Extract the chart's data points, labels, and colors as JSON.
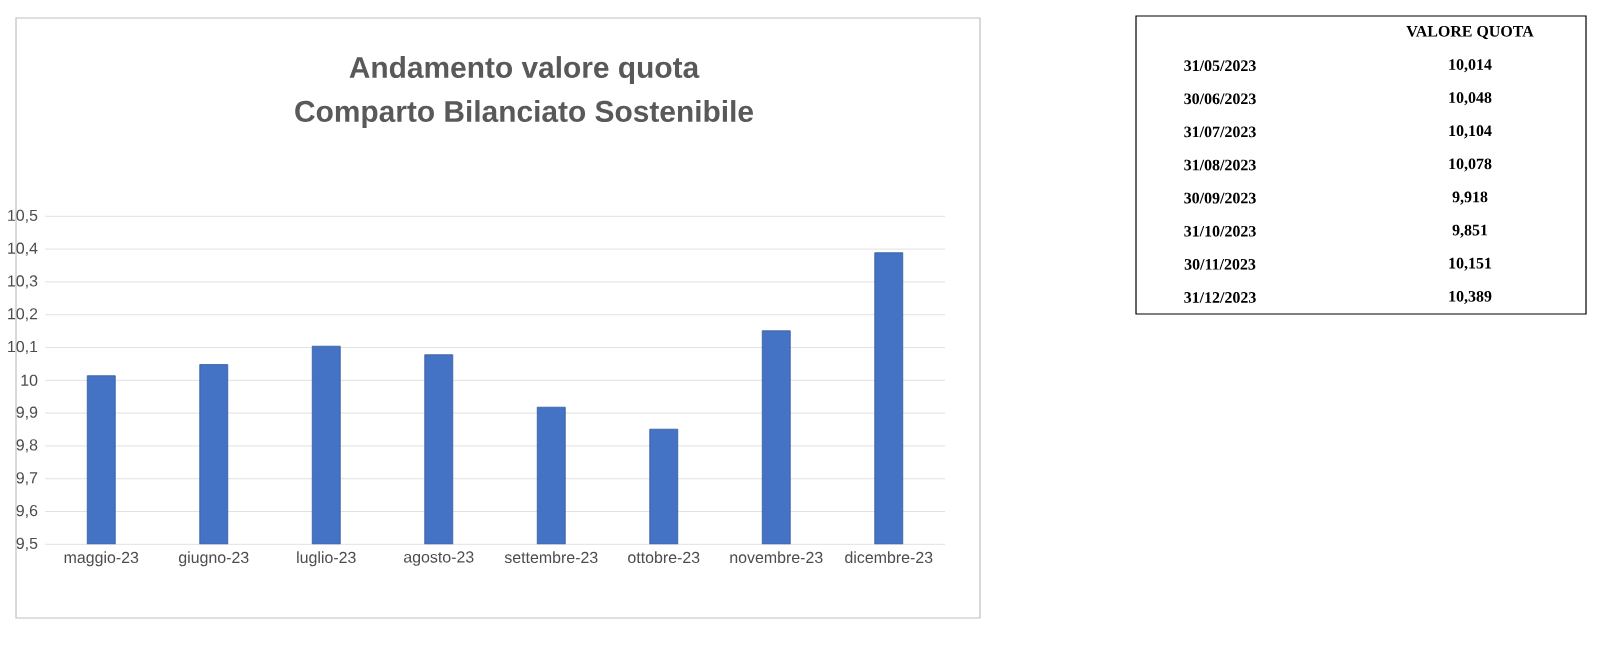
{
  "chart_data": [
    {
      "type": "bar",
      "title": "Andamento valore quota",
      "subtitle": "Comparto Bilanciato Sostenibile",
      "categories": [
        "maggio-23",
        "giugno-23",
        "luglio-23",
        "agosto-23",
        "settembre-23",
        "ottobre-23",
        "novembre-23",
        "dicembre-23"
      ],
      "values": [
        10.014,
        10.048,
        10.104,
        10.078,
        9.918,
        9.851,
        10.151,
        10.389
      ],
      "color": "#4472c4",
      "ylim": [
        9.5,
        10.5
      ],
      "yticks": [
        {
          "value": 9.5,
          "label": "9,5"
        },
        {
          "value": 9.6,
          "label": "9,6"
        },
        {
          "value": 9.7,
          "label": "9,7"
        },
        {
          "value": 9.8,
          "label": "9,8"
        },
        {
          "value": 9.9,
          "label": "9,9"
        },
        {
          "value": 10,
          "label": "10"
        },
        {
          "value": 10.1,
          "label": "10,1"
        },
        {
          "value": 10.2,
          "label": "10,2"
        },
        {
          "value": 10.3,
          "label": "10,3"
        },
        {
          "value": 10.4,
          "label": "10,4"
        },
        {
          "value": 10.5,
          "label": "10,5"
        }
      ],
      "grid": "y"
    },
    {
      "type": "other",
      "annotations": [
        "VALORE QUOTA",
        "31/05/2023",
        "10,014",
        "30/06/2023",
        "10,048",
        "31/07/2023",
        "10,104",
        "31/08/2023",
        "10,078",
        "30/09/2023",
        "9,918",
        "31/10/2023",
        "9,851",
        "30/11/2023",
        "10,151",
        "31/12/2023",
        "10,389"
      ]
    }
  ]
}
